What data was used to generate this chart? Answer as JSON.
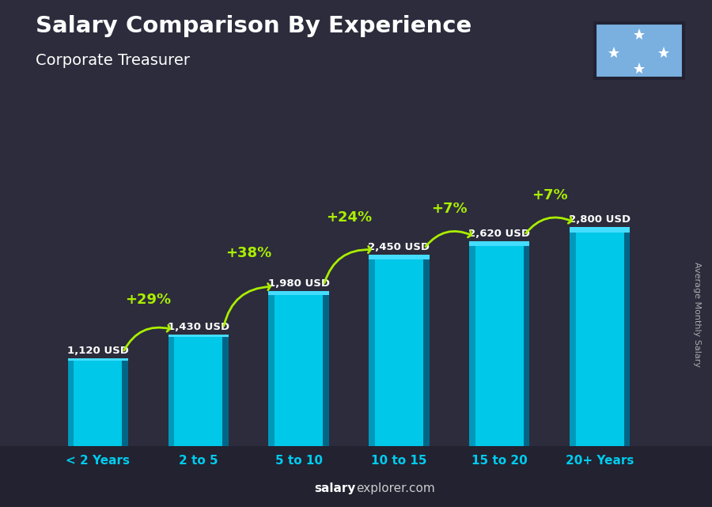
{
  "title": "Salary Comparison By Experience",
  "subtitle": "Corporate Treasurer",
  "categories": [
    "< 2 Years",
    "2 to 5",
    "5 to 10",
    "10 to 15",
    "15 to 20",
    "20+ Years"
  ],
  "values": [
    1120,
    1430,
    1980,
    2450,
    2620,
    2800
  ],
  "value_labels": [
    "1,120 USD",
    "1,430 USD",
    "1,980 USD",
    "2,450 USD",
    "2,620 USD",
    "2,800 USD"
  ],
  "pct_changes": [
    "+29%",
    "+38%",
    "+24%",
    "+7%",
    "+7%"
  ],
  "bar_color_main": "#00c8e8",
  "bar_color_left": "#0099bb",
  "bar_color_right": "#006688",
  "bar_color_top": "#44ddff",
  "bg_color": "#2c2c3c",
  "title_color": "#ffffff",
  "subtitle_color": "#ffffff",
  "value_label_color": "#ffffff",
  "pct_color": "#aaee00",
  "tick_color": "#00ccee",
  "watermark_salary_color": "#ffffff",
  "watermark_explorer_color": "#aaaaaa",
  "ylabel": "Average Monthly Salary",
  "ylim_max": 3500,
  "bar_width": 0.6,
  "flag_bg": "#7ab0e0",
  "watermark": "salaryexplorer.com"
}
